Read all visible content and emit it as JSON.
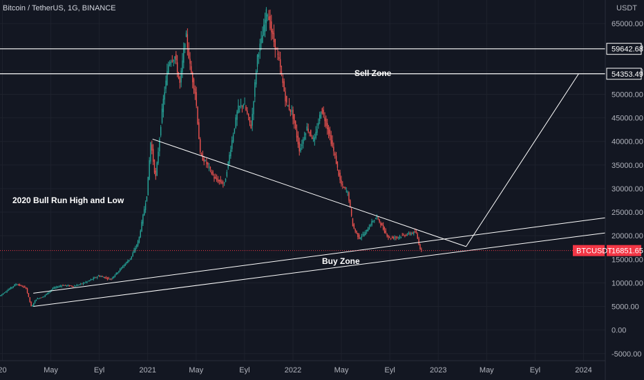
{
  "header": {
    "symbol_title": "Bitcoin / TetherUS, 1G, BINANCE",
    "currency": "USDT"
  },
  "annotations": {
    "sell_zone": "Sell Zone",
    "buy_zone": "Buy Zone",
    "bull_run": "2020 Bull Run High and Low"
  },
  "colors": {
    "background": "#131722",
    "up": "#26a69a",
    "down": "#ef5350",
    "line": "#ffffff",
    "price_badge": "#f23645"
  },
  "chart_data": {
    "type": "candlestick",
    "title": "Bitcoin / TetherUS, 1G, BINANCE",
    "y_axis_unit": "USDT",
    "ylim": [
      -6500,
      70000
    ],
    "y_ticks": [
      {
        "value": 65000,
        "label": "65000.00"
      },
      {
        "value": 60000,
        "label": "60000.00"
      },
      {
        "value": 55000,
        "label": "55000.00"
      },
      {
        "value": 50000,
        "label": "50000.00"
      },
      {
        "value": 45000,
        "label": "45000.00"
      },
      {
        "value": 40000,
        "label": "40000.00"
      },
      {
        "value": 35000,
        "label": "35000.00"
      },
      {
        "value": 30000,
        "label": "30000.00"
      },
      {
        "value": 25000,
        "label": "25000.00"
      },
      {
        "value": 20000,
        "label": "20000.00"
      },
      {
        "value": 15000,
        "label": "15000.00"
      },
      {
        "value": 10000,
        "label": "10000.00"
      },
      {
        "value": 5000,
        "label": "5000.00"
      },
      {
        "value": 0,
        "label": "0.00"
      },
      {
        "value": -5000,
        "label": "-5000.00"
      }
    ],
    "x_ticks": [
      {
        "month": 0,
        "label": "20"
      },
      {
        "month": 4,
        "label": "May"
      },
      {
        "month": 8,
        "label": "Eyl"
      },
      {
        "month": 12,
        "label": "2021"
      },
      {
        "month": 16,
        "label": "May"
      },
      {
        "month": 20,
        "label": "Eyl"
      },
      {
        "month": 24,
        "label": "2022"
      },
      {
        "month": 28,
        "label": "May"
      },
      {
        "month": 32,
        "label": "Eyl"
      },
      {
        "month": 36,
        "label": "2023"
      },
      {
        "month": 40,
        "label": "May"
      },
      {
        "month": 44,
        "label": "Eyl"
      },
      {
        "month": 48,
        "label": "2024"
      }
    ],
    "price_path": [
      [
        -0.2,
        7200
      ],
      [
        0.5,
        8500
      ],
      [
        1.2,
        9800
      ],
      [
        2.0,
        8900
      ],
      [
        2.45,
        4800
      ],
      [
        2.8,
        6500
      ],
      [
        3.5,
        7200
      ],
      [
        4.2,
        8800
      ],
      [
        5.0,
        9500
      ],
      [
        6.0,
        9300
      ],
      [
        7.0,
        10200
      ],
      [
        8.0,
        11500
      ],
      [
        9.0,
        10800
      ],
      [
        10.0,
        13500
      ],
      [
        10.7,
        15500
      ],
      [
        11.3,
        19000
      ],
      [
        12.0,
        29000
      ],
      [
        12.3,
        40000
      ],
      [
        12.7,
        32000
      ],
      [
        13.3,
        48000
      ],
      [
        13.8,
        57000
      ],
      [
        14.3,
        58000
      ],
      [
        14.7,
        52000
      ],
      [
        15.2,
        63000
      ],
      [
        15.6,
        55000
      ],
      [
        16.0,
        50000
      ],
      [
        16.4,
        37000
      ],
      [
        17.0,
        35000
      ],
      [
        17.6,
        32000
      ],
      [
        18.4,
        31000
      ],
      [
        19.0,
        40000
      ],
      [
        19.5,
        47000
      ],
      [
        20.0,
        48000
      ],
      [
        20.6,
        43000
      ],
      [
        21.1,
        58000
      ],
      [
        21.5,
        62000
      ],
      [
        21.9,
        68000
      ],
      [
        22.3,
        63000
      ],
      [
        22.9,
        57000
      ],
      [
        23.5,
        48000
      ],
      [
        24.0,
        46000
      ],
      [
        24.6,
        38000
      ],
      [
        25.2,
        43000
      ],
      [
        25.8,
        40000
      ],
      [
        26.4,
        47000
      ],
      [
        27.0,
        42000
      ],
      [
        27.5,
        37000
      ],
      [
        28.0,
        31000
      ],
      [
        28.6,
        29000
      ],
      [
        29.0,
        22000
      ],
      [
        29.5,
        19500
      ],
      [
        30.0,
        20500
      ],
      [
        30.6,
        23000
      ],
      [
        31.0,
        24000
      ],
      [
        31.6,
        21000
      ],
      [
        32.0,
        19500
      ],
      [
        32.8,
        19800
      ],
      [
        33.5,
        20300
      ],
      [
        34.2,
        20800
      ],
      [
        34.6,
        16851.65
      ]
    ],
    "horizontal_levels": [
      {
        "value": 59642.68,
        "label": "59642.68"
      },
      {
        "value": 54353.49,
        "label": "54353.49"
      }
    ],
    "trend_lines": [
      {
        "points": [
          [
            12.4,
            40500
          ],
          [
            38.3,
            17700
          ]
        ]
      },
      {
        "points": [
          [
            2.55,
            7800
          ],
          [
            49.8,
            23800
          ]
        ]
      },
      {
        "points": [
          [
            2.55,
            5000
          ],
          [
            49.8,
            20600
          ]
        ]
      },
      {
        "points": [
          [
            38.3,
            17700
          ],
          [
            47.6,
            54353.49
          ]
        ]
      }
    ],
    "last_price": {
      "symbol": "BTCUSDT",
      "value": 16851.65,
      "label": "16851.65"
    },
    "x_range_months": [
      -0.2,
      49.8
    ]
  }
}
